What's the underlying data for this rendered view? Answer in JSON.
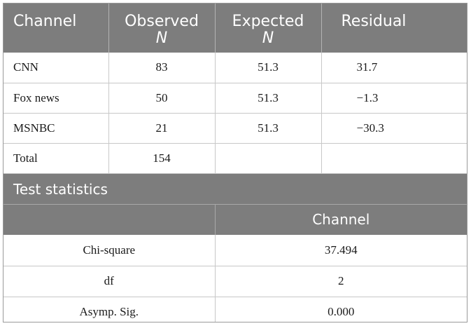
{
  "frequency_table": {
    "headers": [
      {
        "line1": "Channel",
        "line2": ""
      },
      {
        "line1": "Observed",
        "line2": "N"
      },
      {
        "line1": "Expected",
        "line2": "N"
      },
      {
        "line1": "Residual",
        "line2": ""
      }
    ],
    "rows": [
      {
        "channel": "CNN",
        "observed": "83",
        "expected": "51.3",
        "residual": "31.7"
      },
      {
        "channel": "Fox news",
        "observed": "50",
        "expected": "51.3",
        "residual": "−1.3"
      },
      {
        "channel": "MSNBC",
        "observed": "21",
        "expected": "51.3",
        "residual": "−30.3"
      },
      {
        "channel": "Total",
        "observed": "154",
        "expected": "",
        "residual": ""
      }
    ]
  },
  "test_statistics": {
    "title": "Test statistics",
    "column_header": "Channel",
    "rows": [
      {
        "label": "Chi-square",
        "value": "37.494"
      },
      {
        "label": "df",
        "value": "2"
      },
      {
        "label": "Asymp. Sig.",
        "value": "0.000"
      }
    ]
  }
}
